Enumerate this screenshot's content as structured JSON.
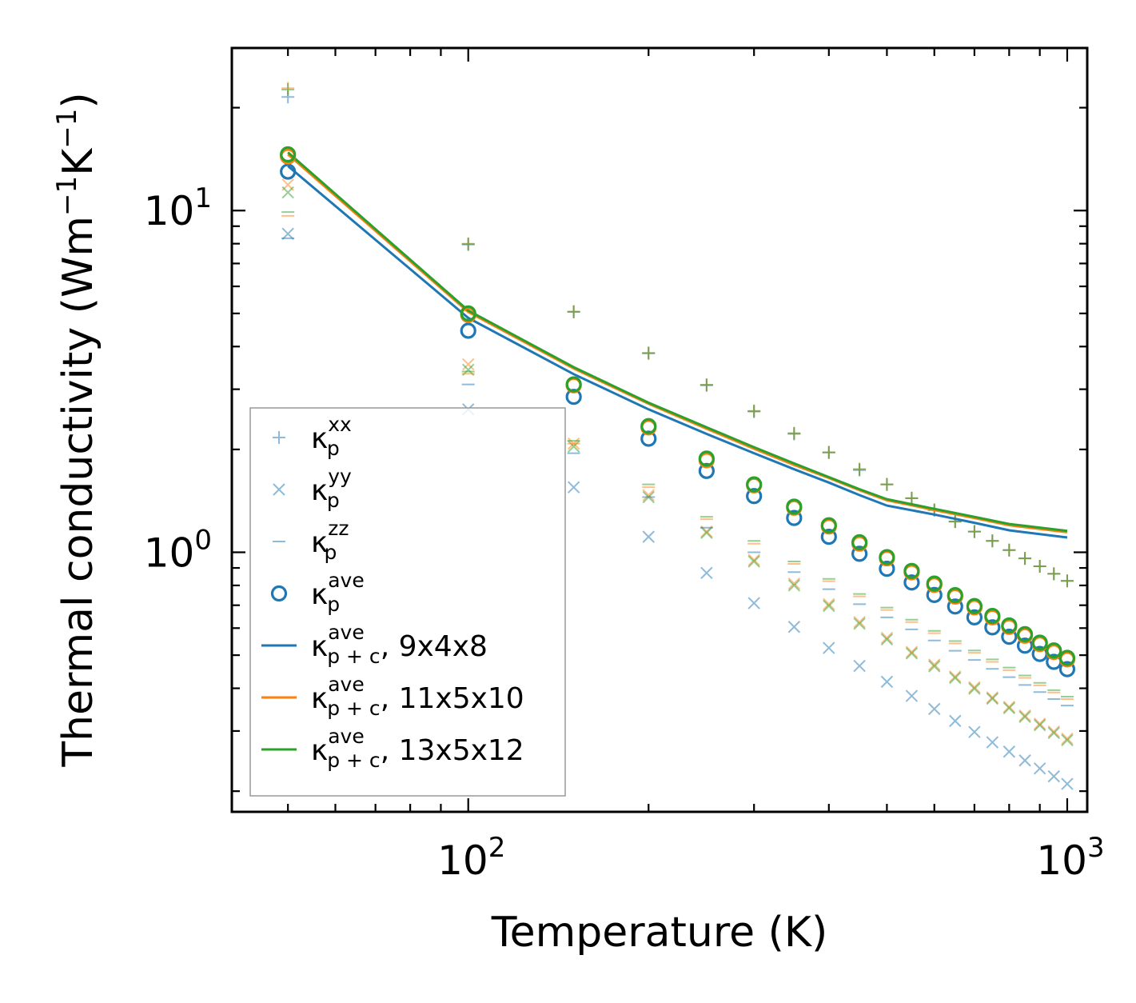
{
  "chart_data": {
    "type": "scatter",
    "title": "",
    "xlabel": "Temperature (K)",
    "ylabel": "Thermal conductivity (Wm",
    "ylabel_sup1": "−1",
    "ylabel_mid": "K",
    "ylabel_sup2": "−1",
    "ylabel_end": ")",
    "xscale": "log",
    "yscale": "log",
    "xlim": [
      40.3,
      1080
    ],
    "ylim": [
      0.174,
      29.9
    ],
    "x_ticks": [
      {
        "value": 100,
        "base": "10",
        "exp": "2"
      },
      {
        "value": 1000,
        "base": "10",
        "exp": "3"
      }
    ],
    "y_ticks": [
      {
        "value": 1,
        "base": "10",
        "exp": "0"
      },
      {
        "value": 10,
        "base": "10",
        "exp": "1"
      }
    ],
    "legend_position": "lower-left",
    "legend": [
      {
        "key": "kxx",
        "label": "κ",
        "sup": "xx",
        "sub": "p",
        "suffix": ""
      },
      {
        "key": "kyy",
        "label": "κ",
        "sup": "yy",
        "sub": "p",
        "suffix": ""
      },
      {
        "key": "kzz",
        "label": "κ",
        "sup": "zz",
        "sub": "p",
        "suffix": ""
      },
      {
        "key": "kave",
        "label": "κ",
        "sup": "ave",
        "sub": "p",
        "suffix": ""
      },
      {
        "key": "line1",
        "label": "κ",
        "sup": "ave",
        "sub": "p + c",
        "suffix": ", 9x4x8"
      },
      {
        "key": "line2",
        "label": "κ",
        "sup": "ave",
        "sub": "p + c",
        "suffix": ", 11x5x10"
      },
      {
        "key": "line3",
        "label": "κ",
        "sup": "ave",
        "sub": "p + c",
        "suffix": ", 13x5x12"
      }
    ],
    "x": [
      50,
      100,
      150,
      200,
      250,
      300,
      350,
      400,
      450,
      500,
      550,
      600,
      650,
      700,
      750,
      800,
      850,
      900,
      950,
      1000
    ],
    "series": [
      {
        "name": "κp xx, 9x4x8",
        "marker": "plus",
        "color": "#1f77b4",
        "alpha": 0.5,
        "values": [
          21.5,
          7.95,
          5.05,
          3.82,
          3.08,
          2.58,
          2.22,
          1.96,
          1.74,
          1.58,
          1.44,
          1.33,
          1.23,
          1.15,
          1.08,
          1.015,
          0.96,
          0.91,
          0.865,
          0.825
        ]
      },
      {
        "name": "κp xx, 11x5x10",
        "marker": "plus",
        "color": "#ff7f0e",
        "alpha": 0.5,
        "values": [
          22.8,
          8.0,
          5.06,
          3.83,
          3.09,
          2.59,
          2.23,
          1.96,
          1.75,
          1.58,
          1.44,
          1.33,
          1.23,
          1.15,
          1.08,
          1.015,
          0.96,
          0.91,
          0.865,
          0.825
        ]
      },
      {
        "name": "κp xx, 13x5x12",
        "marker": "plus",
        "color": "#2ca02c",
        "alpha": 0.5,
        "values": [
          22.6,
          7.98,
          5.06,
          3.83,
          3.09,
          2.59,
          2.23,
          1.96,
          1.75,
          1.58,
          1.44,
          1.33,
          1.23,
          1.15,
          1.08,
          1.015,
          0.96,
          0.91,
          0.865,
          0.825
        ]
      },
      {
        "name": "κp yy, 9x4x8",
        "marker": "x",
        "color": "#1f77b4",
        "alpha": 0.5,
        "values": [
          8.55,
          2.62,
          1.55,
          1.11,
          0.87,
          0.71,
          0.605,
          0.525,
          0.465,
          0.418,
          0.38,
          0.348,
          0.321,
          0.298,
          0.278,
          0.261,
          0.246,
          0.233,
          0.221,
          0.21
        ]
      },
      {
        "name": "κp yy, 11x5x10",
        "marker": "x",
        "color": "#ff7f0e",
        "alpha": 0.5,
        "values": [
          11.9,
          3.55,
          2.08,
          1.47,
          1.15,
          0.95,
          0.81,
          0.705,
          0.625,
          0.562,
          0.511,
          0.469,
          0.433,
          0.403,
          0.376,
          0.353,
          0.333,
          0.315,
          0.299,
          0.285
        ]
      },
      {
        "name": "κp yy, 13x5x12",
        "marker": "x",
        "color": "#2ca02c",
        "alpha": 0.5,
        "values": [
          11.3,
          3.42,
          2.04,
          1.45,
          1.14,
          0.94,
          0.8,
          0.697,
          0.618,
          0.556,
          0.506,
          0.464,
          0.429,
          0.399,
          0.373,
          0.35,
          0.33,
          0.312,
          0.296,
          0.282
        ]
      },
      {
        "name": "κp zz, 9x4x8",
        "marker": "hline",
        "color": "#1f77b4",
        "alpha": 0.5,
        "values": [
          8.3,
          3.1,
          1.95,
          1.45,
          1.18,
          1.0,
          0.875,
          0.78,
          0.705,
          0.645,
          0.595,
          0.552,
          0.515,
          0.484,
          0.456,
          0.431,
          0.409,
          0.39,
          0.372,
          0.356
        ]
      },
      {
        "name": "κp zz, 11x5x10",
        "marker": "hline",
        "color": "#ff7f0e",
        "alpha": 0.5,
        "values": [
          9.65,
          3.33,
          2.08,
          1.55,
          1.25,
          1.06,
          0.925,
          0.823,
          0.743,
          0.678,
          0.625,
          0.58,
          0.541,
          0.508,
          0.478,
          0.452,
          0.429,
          0.408,
          0.389,
          0.372
        ]
      },
      {
        "name": "κp zz, 13x5x12",
        "marker": "hline",
        "color": "#2ca02c",
        "alpha": 0.5,
        "values": [
          9.9,
          3.38,
          2.12,
          1.58,
          1.27,
          1.08,
          0.94,
          0.836,
          0.755,
          0.689,
          0.635,
          0.589,
          0.55,
          0.516,
          0.486,
          0.46,
          0.436,
          0.415,
          0.395,
          0.378
        ]
      },
      {
        "name": "κp ave, 9x4x8",
        "marker": "circle",
        "color": "#1f77b4",
        "alpha": 1,
        "values": [
          13.0,
          4.45,
          2.85,
          2.15,
          1.73,
          1.46,
          1.26,
          1.11,
          0.99,
          0.895,
          0.816,
          0.75,
          0.694,
          0.645,
          0.603,
          0.566,
          0.533,
          0.504,
          0.478,
          0.455
        ]
      },
      {
        "name": "κp ave, 11x5x10",
        "marker": "circle",
        "color": "#ff7f0e",
        "alpha": 1,
        "values": [
          14.4,
          4.95,
          3.08,
          2.32,
          1.86,
          1.57,
          1.35,
          1.19,
          1.06,
          0.96,
          0.874,
          0.803,
          0.742,
          0.69,
          0.645,
          0.605,
          0.57,
          0.539,
          0.511,
          0.486
        ]
      },
      {
        "name": "κp ave, 13x5x12",
        "marker": "circle",
        "color": "#2ca02c",
        "alpha": 1,
        "values": [
          14.6,
          5.0,
          3.1,
          2.34,
          1.88,
          1.58,
          1.36,
          1.2,
          1.07,
          0.968,
          0.882,
          0.81,
          0.749,
          0.696,
          0.651,
          0.611,
          0.576,
          0.544,
          0.516,
          0.491
        ]
      },
      {
        "name": "κp+c ave, 9x4x8",
        "marker": "line",
        "color": "#1f77b4",
        "alpha": 1,
        "values": [
          13.5,
          4.85,
          3.32,
          2.62,
          2.22,
          1.95,
          1.75,
          1.6,
          1.47,
          1.37,
          1.29,
          1.22,
          1.16,
          1.105
        ]
      },
      {
        "name": "κp+c ave, 11x5x10",
        "marker": "line",
        "color": "#ff7f0e",
        "alpha": 1,
        "values": [
          14.6,
          5.05,
          3.45,
          2.72,
          2.3,
          2.01,
          1.8,
          1.65,
          1.52,
          1.42,
          1.33,
          1.26,
          1.2,
          1.145
        ]
      },
      {
        "name": "κp+c ave, 13x5x12",
        "marker": "line",
        "color": "#2ca02c",
        "alpha": 1,
        "values": [
          14.8,
          5.1,
          3.48,
          2.74,
          2.32,
          2.03,
          1.82,
          1.66,
          1.53,
          1.43,
          1.34,
          1.27,
          1.21,
          1.155
        ]
      }
    ],
    "line_x": [
      50,
      100,
      150,
      200,
      250,
      300,
      350,
      400,
      450,
      500,
      600,
      700,
      800,
      1000
    ]
  }
}
